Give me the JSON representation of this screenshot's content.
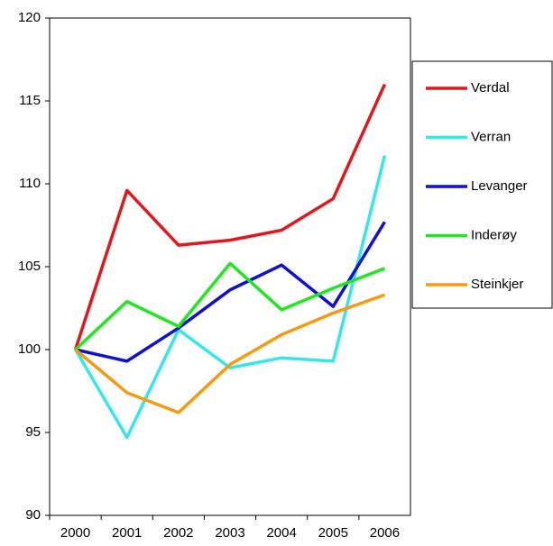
{
  "chart_data": {
    "type": "line",
    "categories": [
      "2000",
      "2001",
      "2002",
      "2003",
      "2004",
      "2005",
      "2006"
    ],
    "series": [
      {
        "name": "Verdal",
        "color": "#e8141b",
        "values": [
          100,
          109.6,
          106.3,
          106.6,
          107.2,
          109.1,
          116.0
        ]
      },
      {
        "name": "Verran",
        "color": "#33e8ea",
        "values": [
          100,
          94.7,
          101.2,
          98.9,
          99.5,
          99.3,
          111.7
        ]
      },
      {
        "name": "Levanger",
        "color": "#0f0fd8",
        "values": [
          100,
          99.3,
          101.3,
          103.6,
          105.1,
          102.6,
          107.7
        ]
      },
      {
        "name": "Inderøy",
        "color": "#1ee81e",
        "values": [
          100,
          102.9,
          101.4,
          105.2,
          102.4,
          103.7,
          104.9
        ]
      },
      {
        "name": "Steinkjer",
        "color": "#f79a10",
        "values": [
          100,
          97.4,
          96.2,
          99.1,
          100.9,
          102.2,
          103.3
        ]
      }
    ],
    "ylim": [
      90,
      120
    ],
    "yticks": [
      90,
      95,
      100,
      105,
      110,
      115,
      120
    ]
  }
}
